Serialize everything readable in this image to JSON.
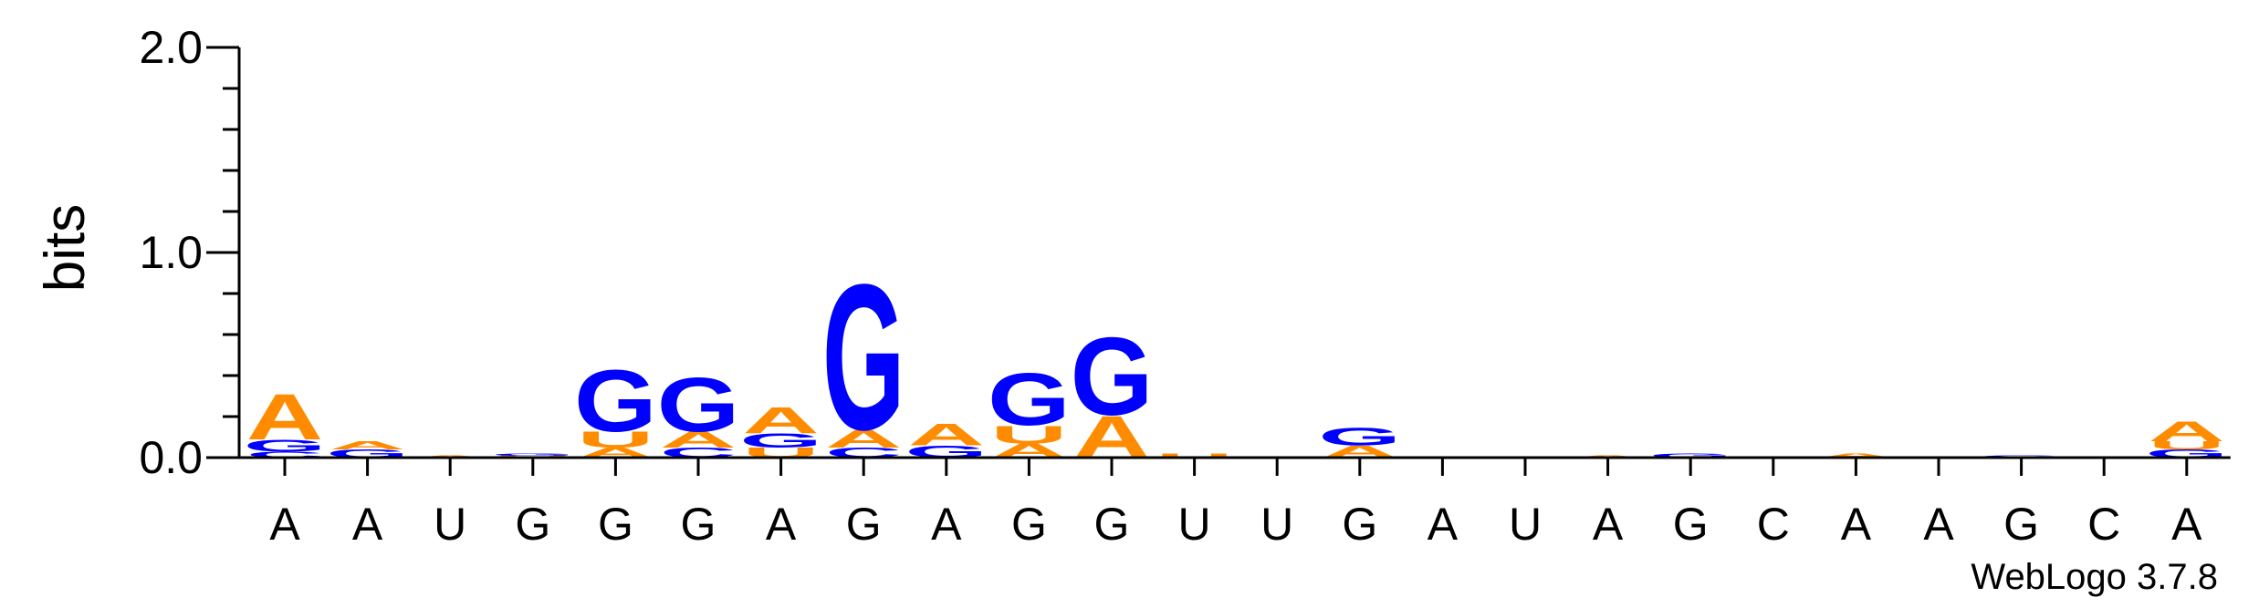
{
  "chart_data": {
    "type": "sequence-logo",
    "ylabel": "bits",
    "ylim": [
      0,
      2
    ],
    "yticks": [
      "0.0",
      "1.0",
      "2.0"
    ],
    "colors": {
      "A": "#ff8c00",
      "U": "#ff8c00",
      "G": "#0000ff",
      "C": "#0000ff"
    },
    "positions": [
      {
        "label": "A",
        "stack": [
          {
            "l": "C",
            "h": 0.03
          },
          {
            "l": "G",
            "h": 0.06
          },
          {
            "l": "A",
            "h": 0.23
          }
        ]
      },
      {
        "label": "A",
        "stack": [
          {
            "l": "G",
            "h": 0.04
          },
          {
            "l": "A",
            "h": 0.04
          }
        ]
      },
      {
        "label": "U",
        "stack": [
          {
            "l": "A",
            "h": 0.01
          }
        ]
      },
      {
        "label": "G",
        "stack": [
          {
            "l": "U",
            "h": 0.01
          },
          {
            "l": "G",
            "h": 0.01
          }
        ]
      },
      {
        "label": "G",
        "stack": [
          {
            "l": "A",
            "h": 0.05
          },
          {
            "l": "U",
            "h": 0.08
          },
          {
            "l": "G",
            "h": 0.31
          }
        ]
      },
      {
        "label": "G",
        "stack": [
          {
            "l": "C",
            "h": 0.05
          },
          {
            "l": "A",
            "h": 0.08
          },
          {
            "l": "G",
            "h": 0.27
          }
        ]
      },
      {
        "label": "A",
        "stack": [
          {
            "l": "U",
            "h": 0.05
          },
          {
            "l": "G",
            "h": 0.07
          },
          {
            "l": "A",
            "h": 0.13
          }
        ]
      },
      {
        "label": "G",
        "stack": [
          {
            "l": "C",
            "h": 0.05
          },
          {
            "l": "A",
            "h": 0.09
          },
          {
            "l": "G",
            "h": 0.73
          }
        ]
      },
      {
        "label": "A",
        "stack": [
          {
            "l": "G",
            "h": 0.06
          },
          {
            "l": "A",
            "h": 0.11
          }
        ]
      },
      {
        "label": "G",
        "stack": [
          {
            "l": "A",
            "h": 0.07
          },
          {
            "l": "U",
            "h": 0.09
          },
          {
            "l": "G",
            "h": 0.26
          }
        ]
      },
      {
        "label": "G",
        "stack": [
          {
            "l": "A",
            "h": 0.21
          },
          {
            "l": "G",
            "h": 0.39
          }
        ]
      },
      {
        "label": "U",
        "stack": [
          {
            "l": "U",
            "h": 0.02
          }
        ]
      },
      {
        "label": "U",
        "stack": []
      },
      {
        "label": "G",
        "stack": [
          {
            "l": "A",
            "h": 0.06
          },
          {
            "l": "G",
            "h": 0.09
          }
        ]
      },
      {
        "label": "A",
        "stack": []
      },
      {
        "label": "U",
        "stack": []
      },
      {
        "label": "A",
        "stack": [
          {
            "l": "A",
            "h": 0.01
          }
        ]
      },
      {
        "label": "G",
        "stack": [
          {
            "l": "G",
            "h": 0.02
          }
        ]
      },
      {
        "label": "C",
        "stack": []
      },
      {
        "label": "A",
        "stack": [
          {
            "l": "A",
            "h": 0.02
          }
        ]
      },
      {
        "label": "A",
        "stack": []
      },
      {
        "label": "G",
        "stack": [
          {
            "l": "G",
            "h": 0.01
          }
        ]
      },
      {
        "label": "C",
        "stack": []
      },
      {
        "label": "A",
        "stack": [
          {
            "l": "G",
            "h": 0.04
          },
          {
            "l": "U",
            "h": 0.04
          },
          {
            "l": "A",
            "h": 0.1
          }
        ]
      }
    ]
  },
  "footer": {
    "credit": "WebLogo 3.7.8"
  }
}
